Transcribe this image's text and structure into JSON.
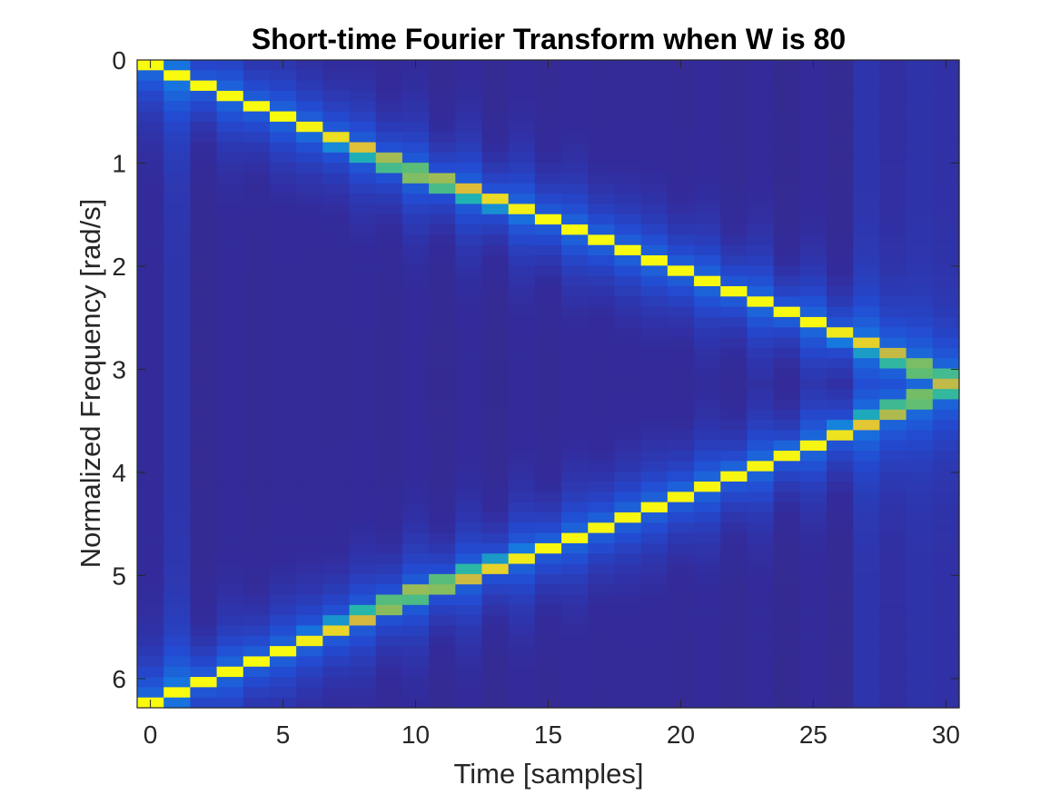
{
  "chart_data": {
    "type": "heatmap",
    "title": "Short-time Fourier Transform when W is 80",
    "xlabel": "Time [samples]",
    "ylabel": "Normalized Frequency [rad/s]",
    "xlim": [
      -0.5,
      30.5
    ],
    "ylim": [
      0,
      6.2832
    ],
    "y_direction": "reversed",
    "x_ticks": [
      0,
      5,
      10,
      15,
      20,
      25,
      30
    ],
    "y_ticks": [
      0,
      1,
      2,
      3,
      4,
      5,
      6
    ],
    "colormap": "parula",
    "grid": false,
    "legend": "none",
    "time_bins": 31,
    "frequency_bins": 63,
    "ridges": [
      {
        "name": "upward ridge",
        "points": [
          [
            0,
            0.05
          ],
          [
            5,
            0.55
          ],
          [
            10,
            1.1
          ],
          [
            15,
            1.55
          ],
          [
            20,
            2.05
          ],
          [
            25,
            2.55
          ],
          [
            30,
            3.1
          ]
        ]
      },
      {
        "name": "mirrored ridge",
        "points": [
          [
            0,
            6.23
          ],
          [
            5,
            5.73
          ],
          [
            10,
            5.18
          ],
          [
            15,
            4.73
          ],
          [
            20,
            4.23
          ],
          [
            25,
            3.73
          ],
          [
            30,
            3.18
          ]
        ]
      }
    ],
    "peak_magnitude": 1.0,
    "background_magnitude": 0.12
  },
  "colors": {
    "parula_low": "#352a87",
    "parula_mid_low": "#2c5ee6",
    "parula_mid": "#21b5b0",
    "parula_mid_high": "#a5be6b",
    "parula_high": "#f9fb0e",
    "axes_edge": "#262626"
  }
}
